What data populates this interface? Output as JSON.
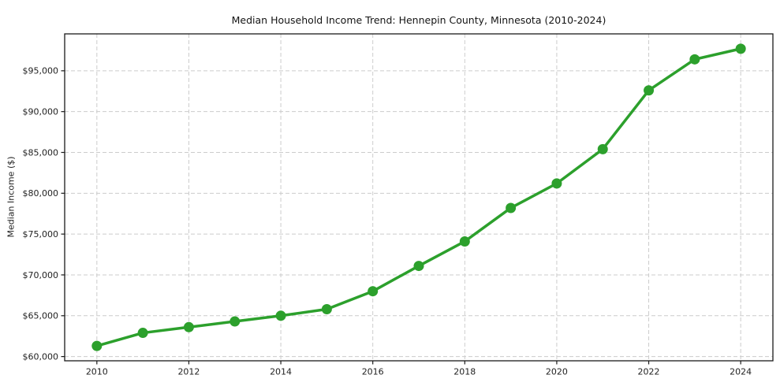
{
  "chart_data": {
    "type": "line",
    "title": "Median Household Income Trend: Hennepin County, Minnesota (2010-2024)",
    "xlabel": "",
    "ylabel": "Median Income ($)",
    "years": [
      2010,
      2011,
      2012,
      2013,
      2014,
      2015,
      2016,
      2017,
      2018,
      2019,
      2020,
      2021,
      2022,
      2023,
      2024
    ],
    "values": [
      61300,
      62900,
      63600,
      64300,
      65000,
      65800,
      68000,
      71100,
      74100,
      78200,
      81200,
      85400,
      92600,
      96400,
      97700
    ],
    "x_ticks": [
      2010,
      2012,
      2014,
      2016,
      2018,
      2020,
      2022,
      2024
    ],
    "x_tick_labels": [
      "2010",
      "2012",
      "2014",
      "2016",
      "2018",
      "2020",
      "2022",
      "2024"
    ],
    "y_ticks": [
      60000,
      65000,
      70000,
      75000,
      80000,
      85000,
      90000,
      95000
    ],
    "y_tick_labels": [
      "$60,000",
      "$65,000",
      "$70,000",
      "$75,000",
      "$80,000",
      "$85,000",
      "$90,000",
      "$95,000"
    ],
    "xlim": [
      2009.3,
      2024.7
    ],
    "ylim": [
      59480,
      99520
    ],
    "grid": true,
    "grid_style": "dashed",
    "legend": false,
    "marker": "circle",
    "colors": {
      "line": "#2ca02c",
      "grid": "#cccccc",
      "axis": "#1a1a1a",
      "text": "#1f1f1f",
      "background": "#ffffff"
    }
  }
}
